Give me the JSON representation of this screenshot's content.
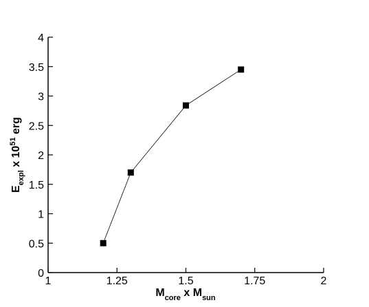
{
  "chart_data": {
    "type": "line",
    "x_label": [
      {
        "text": "M"
      },
      {
        "text": "core",
        "sub": true
      },
      {
        "text": " x M"
      },
      {
        "text": "sun",
        "sub": true
      }
    ],
    "y_label": [
      {
        "text": "E"
      },
      {
        "text": "expl",
        "sub": true
      },
      {
        "text": " x 10"
      },
      {
        "text": "51",
        "sup": true
      },
      {
        "text": " erg"
      }
    ],
    "x": [
      1.2,
      1.3,
      1.5,
      1.7
    ],
    "series": [
      {
        "name": "E_expl",
        "color": "#000000",
        "values": [
          0.5,
          1.7,
          2.84,
          3.45
        ]
      }
    ],
    "xlim": [
      1,
      2
    ],
    "xticks": [
      1,
      1.25,
      1.5,
      1.75,
      2
    ],
    "ylim": [
      0,
      4
    ],
    "yticks": [
      0,
      0.5,
      1,
      1.5,
      2,
      2.5,
      3,
      3.5,
      4
    ],
    "marker": "square",
    "grid": false
  }
}
